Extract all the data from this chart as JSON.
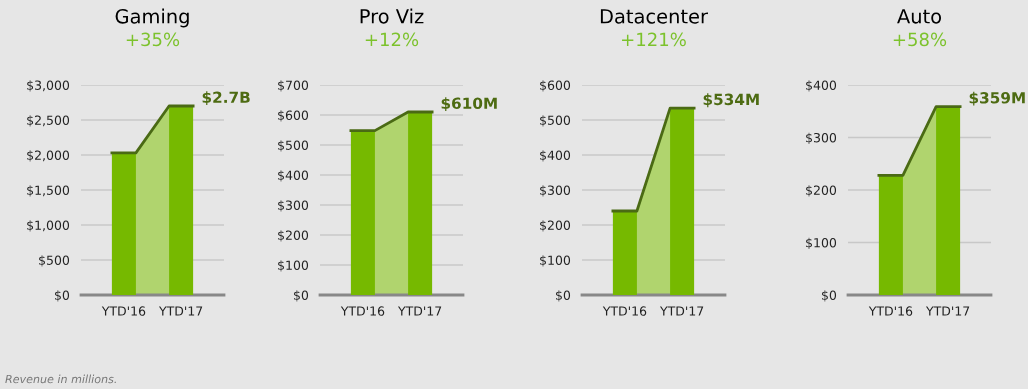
{
  "chart_data": [
    {
      "type": "bar",
      "title": "Gaming",
      "subtitle": "+35%",
      "categories": [
        "YTD'16",
        "YTD'17"
      ],
      "series": [
        {
          "color": "#76b900",
          "values": [
            2030,
            2700
          ]
        },
        {
          "type": "area",
          "color": "#b0d46e",
          "values": [
            2030,
            2700
          ]
        }
      ],
      "ylim": [
        0,
        3000
      ],
      "yticks": [
        {
          "value": 0,
          "label": "$0"
        },
        {
          "value": 500,
          "label": "$500"
        },
        {
          "value": 1000,
          "label": "$1,000"
        },
        {
          "value": 1500,
          "label": "$1,500"
        },
        {
          "value": 2000,
          "label": "$2,000"
        },
        {
          "value": 2500,
          "label": "$2,500"
        },
        {
          "value": 3000,
          "label": "$3,000"
        }
      ],
      "grid": "y",
      "annotations": [
        {
          "text": "$2.7B",
          "x": "YTD'17",
          "y": 2700
        },
        "Revenue in millions."
      ]
    },
    {
      "type": "bar",
      "title": "Pro Viz",
      "subtitle": "+12%",
      "categories": [
        "YTD'16",
        "YTD'17"
      ],
      "series": [
        {
          "color": "#76b900",
          "values": [
            548,
            610
          ]
        },
        {
          "type": "area",
          "color": "#b0d46e",
          "values": [
            548,
            610
          ]
        }
      ],
      "ylim": [
        0,
        700
      ],
      "yticks": [
        {
          "value": 0,
          "label": "$0"
        },
        {
          "value": 100,
          "label": "$100"
        },
        {
          "value": 200,
          "label": "$200"
        },
        {
          "value": 300,
          "label": "$300"
        },
        {
          "value": 400,
          "label": "$400"
        },
        {
          "value": 500,
          "label": "$500"
        },
        {
          "value": 600,
          "label": "$600"
        },
        {
          "value": 700,
          "label": "$700"
        }
      ],
      "grid": "y",
      "annotations": [
        {
          "text": "$610M",
          "x": "YTD'17",
          "y": 610
        }
      ]
    },
    {
      "type": "bar",
      "title": "Datacenter",
      "subtitle": "+121%",
      "categories": [
        "YTD'16",
        "YTD'17"
      ],
      "series": [
        {
          "color": "#76b900",
          "values": [
            240,
            534
          ]
        },
        {
          "type": "area",
          "color": "#b0d46e",
          "values": [
            240,
            534
          ]
        }
      ],
      "ylim": [
        0,
        600
      ],
      "yticks": [
        {
          "value": 0,
          "label": "$0"
        },
        {
          "value": 100,
          "label": "$100"
        },
        {
          "value": 200,
          "label": "$200"
        },
        {
          "value": 300,
          "label": "$300"
        },
        {
          "value": 400,
          "label": "$400"
        },
        {
          "value": 500,
          "label": "$500"
        },
        {
          "value": 600,
          "label": "$600"
        }
      ],
      "grid": "y",
      "annotations": [
        {
          "text": "$534M",
          "x": "YTD'17",
          "y": 534
        }
      ]
    },
    {
      "type": "bar",
      "title": "Auto",
      "subtitle": "+58%",
      "categories": [
        "YTD'16",
        "YTD'17"
      ],
      "series": [
        {
          "color": "#76b900",
          "values": [
            228,
            359
          ]
        },
        {
          "type": "area",
          "color": "#b0d46e",
          "values": [
            228,
            359
          ]
        }
      ],
      "ylim": [
        0,
        400
      ],
      "yticks": [
        {
          "value": 0,
          "label": "$0"
        },
        {
          "value": 100,
          "label": "$100"
        },
        {
          "value": 200,
          "label": "$200"
        },
        {
          "value": 300,
          "label": "$300"
        },
        {
          "value": 400,
          "label": "$400"
        }
      ],
      "grid": "y",
      "annotations": [
        {
          "text": "$359M",
          "x": "YTD'17",
          "y": 359
        }
      ]
    }
  ]
}
